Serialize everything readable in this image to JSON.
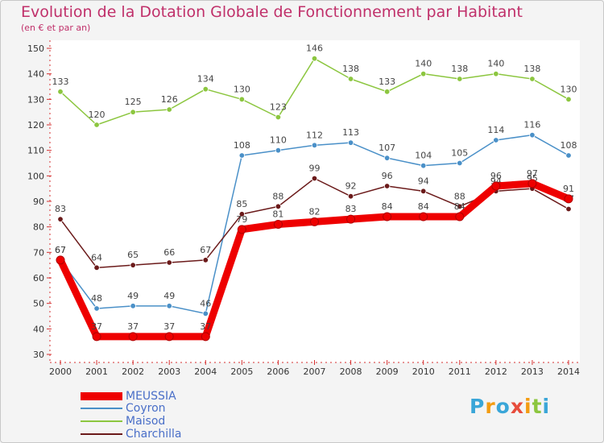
{
  "chart_data": {
    "type": "line",
    "title": "Evolution de la Dotation Globale de Fonctionnement par Habitant",
    "subtitle": "(en € et par an)",
    "xlabel": "",
    "ylabel": "",
    "ylim": [
      30,
      150
    ],
    "yticks": [
      30,
      40,
      50,
      60,
      70,
      80,
      90,
      100,
      110,
      120,
      130,
      140,
      150
    ],
    "categories": [
      "2000",
      "2001",
      "2002",
      "2003",
      "2004",
      "2005",
      "2006",
      "2007",
      "2008",
      "2009",
      "2010",
      "2011",
      "2012",
      "2013",
      "2014"
    ],
    "series": [
      {
        "name": "Maisod",
        "color": "#8cc63f",
        "values": [
          133,
          120,
          125,
          126,
          134,
          130,
          123,
          146,
          138,
          133,
          140,
          138,
          140,
          138,
          130
        ],
        "labels": [
          "133",
          "120",
          "125",
          "126",
          "134",
          "130",
          "123",
          "146",
          "138",
          "133",
          "140",
          "138",
          "140",
          "138",
          "130"
        ]
      },
      {
        "name": "Coyron",
        "color": "#4a90c8",
        "values": [
          67,
          48,
          49,
          49,
          46,
          108,
          110,
          112,
          113,
          107,
          104,
          105,
          114,
          116,
          108
        ],
        "labels": [
          "67",
          "48",
          "49",
          "49",
          "46",
          "108",
          "110",
          "112",
          "113",
          "107",
          "104",
          "105",
          "114",
          "116",
          "108"
        ]
      },
      {
        "name": "Charchilla",
        "color": "#6b1a1a",
        "values": [
          83,
          64,
          65,
          66,
          67,
          85,
          88,
          99,
          92,
          96,
          94,
          88,
          94,
          95,
          87
        ],
        "labels": [
          "83",
          "64",
          "65",
          "66",
          "67",
          "85",
          "88",
          "99",
          "92",
          "96",
          "94",
          "88",
          "94",
          "95",
          "87"
        ]
      },
      {
        "name": "MEUSSIA",
        "color": "#ee0000",
        "values": [
          67,
          37,
          37,
          37,
          37,
          79,
          81,
          82,
          83,
          84,
          84,
          84,
          96,
          97,
          91
        ],
        "labels": [
          "67",
          "37",
          "37",
          "37",
          "37",
          "79",
          "81",
          "82",
          "83",
          "84",
          "84",
          "84",
          "96",
          "97",
          "91"
        ]
      }
    ],
    "legend": [
      "MEUSSIA",
      "Coyron",
      "Maisod",
      "Charchilla"
    ],
    "legend_placement": "bottom-left",
    "grid": false
  },
  "brand": {
    "logo_text": "Proxiti",
    "logo_letters": [
      "P",
      "r",
      "o",
      "x",
      "i",
      "t",
      "i"
    ]
  }
}
